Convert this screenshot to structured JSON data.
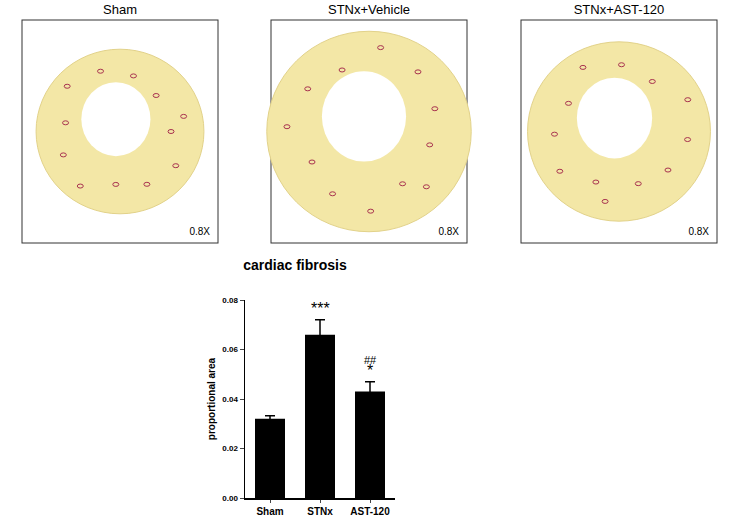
{
  "panels": [
    {
      "title": "Sham",
      "magnification": "0.8X"
    },
    {
      "title": "STNx+Vehicle",
      "magnification": "0.8X"
    },
    {
      "title": "STNx+AST-120",
      "magnification": "0.8X"
    }
  ],
  "chart_data": {
    "type": "bar",
    "title": "cardiac fibrosis",
    "y_label": "proportional area",
    "categories": [
      "Sham",
      "STNx",
      "AST-120"
    ],
    "values": [
      0.032,
      0.066,
      0.043
    ],
    "error": [
      0.0012,
      0.006,
      0.004
    ],
    "color": "#000000",
    "ylim": [
      0,
      0.08
    ],
    "yticks": [
      {
        "value": 0,
        "label": "0.00"
      },
      {
        "value": 0.02,
        "label": "0.02"
      },
      {
        "value": 0.04,
        "label": "0.04"
      },
      {
        "value": 0.06,
        "label": "0.06"
      },
      {
        "value": 0.08,
        "label": "0.08"
      }
    ],
    "grid": false,
    "annotations": [
      {
        "category": "STNx",
        "text": "***"
      },
      {
        "category": "AST-120",
        "text": "*"
      },
      {
        "category": "AST-120",
        "text": "##"
      }
    ]
  }
}
